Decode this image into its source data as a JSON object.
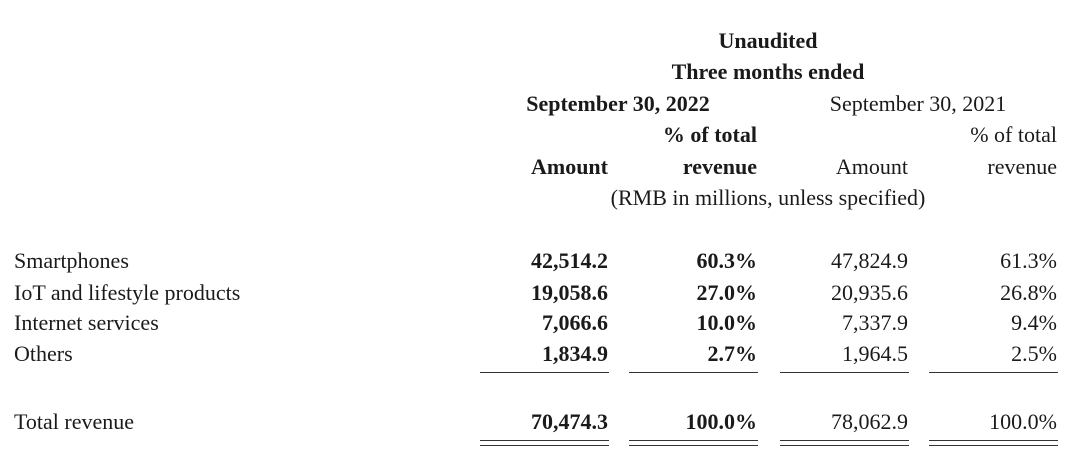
{
  "header": {
    "unaudited": "Unaudited",
    "three_months": "Three months ended",
    "period_2022": "September 30, 2022",
    "period_2021": "September 30, 2021",
    "pct_of_total_line1": "% of total",
    "pct_of_total_line2": "revenue",
    "amount": "Amount",
    "unit_note": "(RMB in millions, unless specified)"
  },
  "rows": [
    {
      "label": "Smartphones",
      "amount_2022": "42,514.2",
      "pct_2022": "60.3%",
      "amount_2021": "47,824.9",
      "pct_2021": "61.3%"
    },
    {
      "label": "IoT and lifestyle products",
      "amount_2022": "19,058.6",
      "pct_2022": "27.0%",
      "amount_2021": "20,935.6",
      "pct_2021": "26.8%"
    },
    {
      "label": "Internet services",
      "amount_2022": "7,066.6",
      "pct_2022": "10.0%",
      "amount_2021": "7,337.9",
      "pct_2021": "9.4%"
    },
    {
      "label": "Others",
      "amount_2022": "1,834.9",
      "pct_2022": "2.7%",
      "amount_2021": "1,964.5",
      "pct_2021": "2.5%"
    }
  ],
  "total": {
    "label": "Total revenue",
    "amount_2022": "70,474.3",
    "pct_2022": "100.0%",
    "amount_2021": "78,062.9",
    "pct_2021": "100.0%"
  }
}
